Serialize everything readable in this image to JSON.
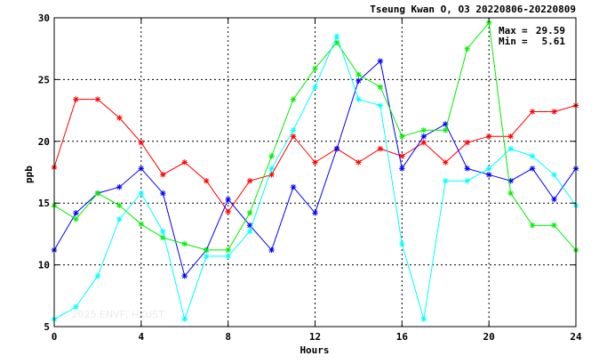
{
  "chart_data": {
    "type": "line",
    "title": "Tseung Kwan O, O3 20220806-20220809",
    "xlabel": "Hours",
    "ylabel": "ppb",
    "xlim": [
      0,
      24
    ],
    "ylim": [
      5,
      30
    ],
    "x_ticks": [
      "0",
      "4",
      "8",
      "12",
      "16",
      "20",
      "24"
    ],
    "y_ticks": [
      "5",
      "10",
      "15",
      "20",
      "25",
      "30"
    ],
    "grid": true,
    "annotations": {
      "max_label": "Max",
      "max_value": "29.59",
      "min_label": "Min",
      "min_value": "5.61"
    },
    "watermark": "© 2025 ENVF, HKUST",
    "x": [
      0,
      1,
      2,
      3,
      4,
      5,
      6,
      7,
      8,
      9,
      10,
      11,
      12,
      13,
      14,
      15,
      16,
      17,
      18,
      19,
      20,
      21,
      22,
      23,
      24
    ],
    "series": [
      {
        "color": "#ff0000",
        "values": [
          17.9,
          23.4,
          23.4,
          21.9,
          19.9,
          17.3,
          18.3,
          16.8,
          14.3,
          16.8,
          17.3,
          20.4,
          18.3,
          19.4,
          18.3,
          19.4,
          18.8,
          19.9,
          18.3,
          19.9,
          20.4,
          20.4,
          22.4,
          22.4,
          22.9
        ]
      },
      {
        "color": "#0000ff",
        "values": [
          11.2,
          14.2,
          15.8,
          16.3,
          17.8,
          15.8,
          9.1,
          11.2,
          15.3,
          13.2,
          11.2,
          16.3,
          14.2,
          19.4,
          24.9,
          26.5,
          17.8,
          20.4,
          21.4,
          17.8,
          17.3,
          16.8,
          17.8,
          15.3,
          17.8
        ]
      },
      {
        "color": "#00ee00",
        "values": [
          14.8,
          13.7,
          15.8,
          14.8,
          13.3,
          12.2,
          11.7,
          11.2,
          11.2,
          14.2,
          18.8,
          23.4,
          25.9,
          28.0,
          25.4,
          24.4,
          20.4,
          20.9,
          20.9,
          27.5,
          29.6,
          15.8,
          13.2,
          13.2,
          11.2
        ]
      },
      {
        "color": "#00ffff",
        "values": [
          5.6,
          6.6,
          9.1,
          13.7,
          15.8,
          12.7,
          5.6,
          10.7,
          10.7,
          12.7,
          17.8,
          20.9,
          24.4,
          28.5,
          23.4,
          22.9,
          11.7,
          5.6,
          16.8,
          16.8,
          17.8,
          19.4,
          18.8,
          17.3,
          14.8
        ]
      }
    ]
  }
}
